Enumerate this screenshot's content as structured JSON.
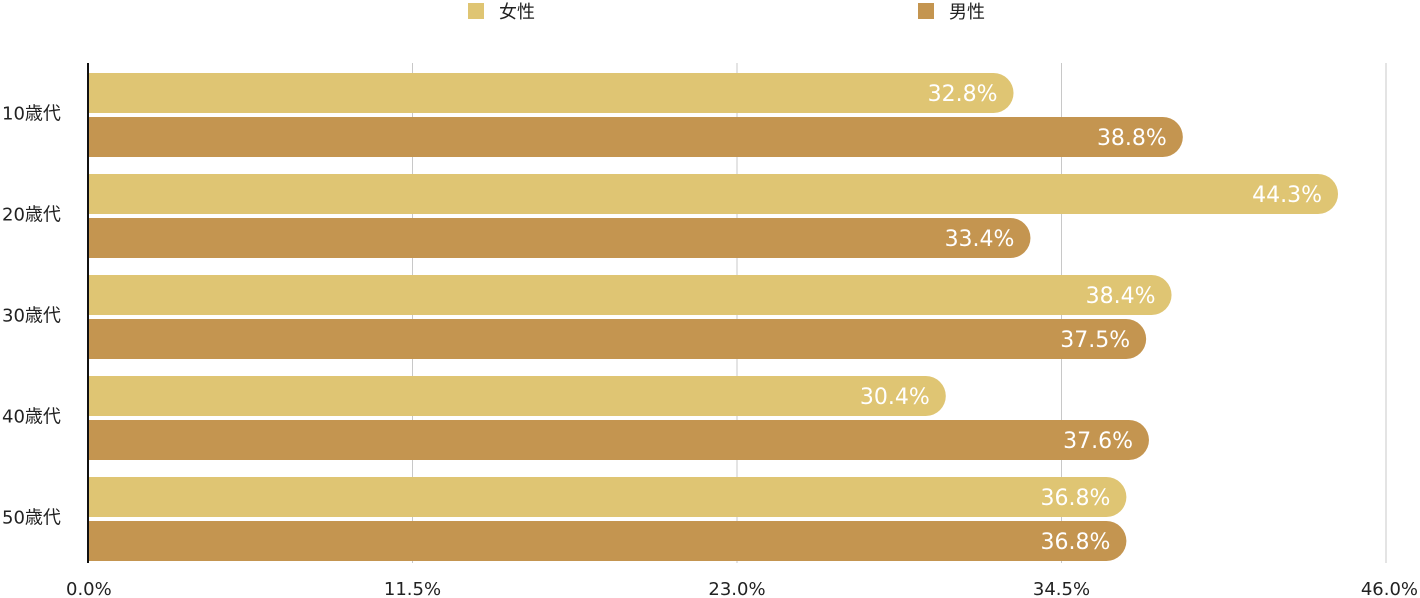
{
  "chart_data": {
    "type": "bar",
    "orientation": "horizontal",
    "categories": [
      "10歳代",
      "20歳代",
      "30歳代",
      "40歳代",
      "50歳代"
    ],
    "series": [
      {
        "name": "女性",
        "color": "#DFC573",
        "values": [
          32.8,
          44.3,
          38.4,
          30.4,
          36.8
        ],
        "labels": [
          "32.8%",
          "44.3%",
          "38.4%",
          "30.4%",
          "36.8%"
        ]
      },
      {
        "name": "男性",
        "color": "#C49550",
        "values": [
          38.8,
          33.4,
          37.5,
          37.6,
          36.8
        ],
        "labels": [
          "38.8%",
          "33.4%",
          "37.5%",
          "37.6%",
          "36.8%"
        ]
      }
    ],
    "xlim": [
      0,
      46
    ],
    "xticks": [
      0,
      11.5,
      23,
      34.5,
      46
    ],
    "xtick_labels": [
      "0.0%",
      "11.5%",
      "23.0%",
      "34.5%",
      "46.0%"
    ],
    "grid": "vertical",
    "legend_position": "top-center"
  }
}
